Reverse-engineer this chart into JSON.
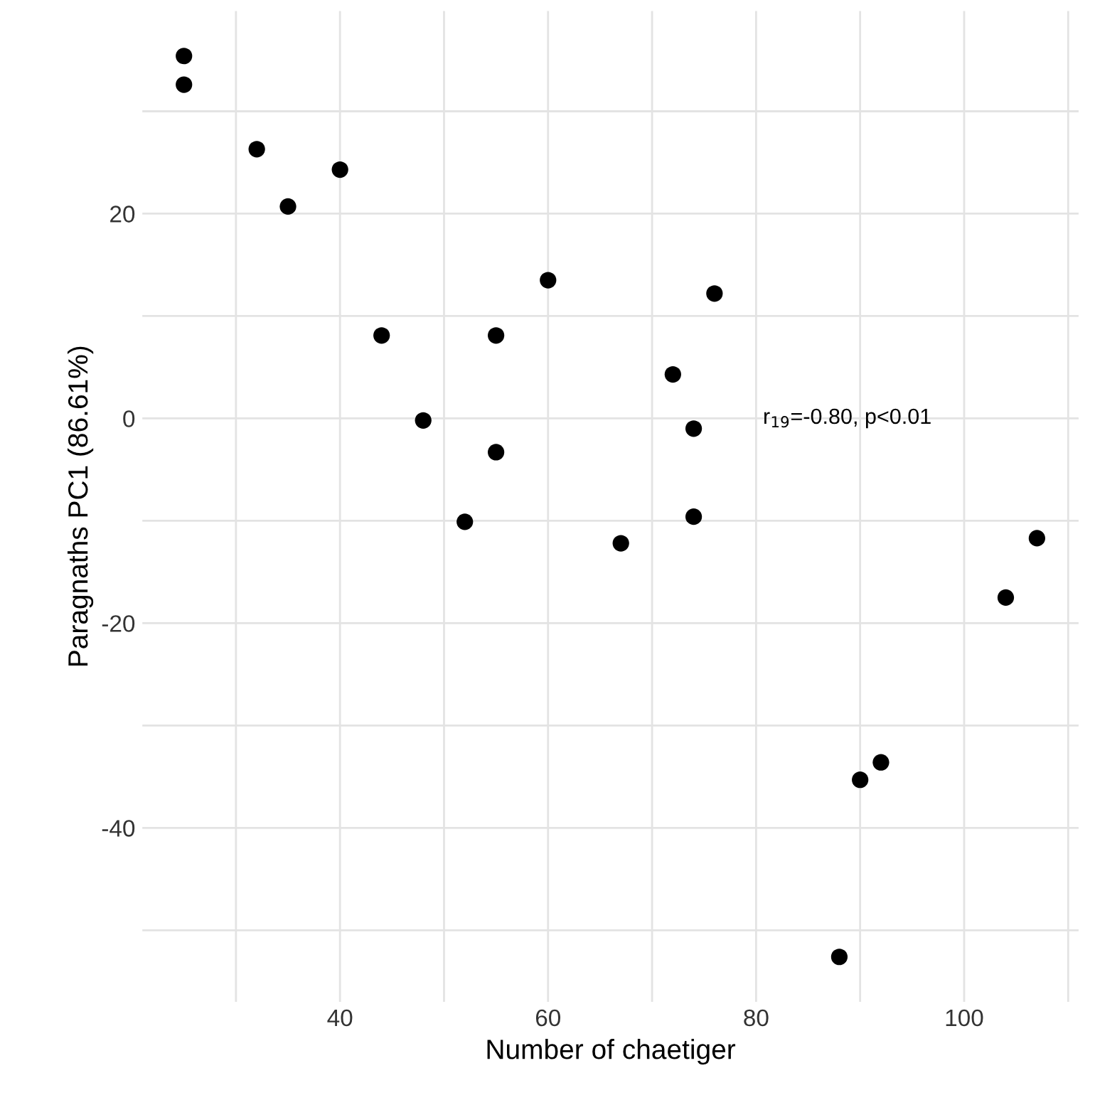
{
  "chart_data": {
    "type": "scatter",
    "xlabel": "Number of chaetiger",
    "ylabel": "Paragnaths PC1 (86.61%)",
    "x": [
      25,
      25,
      32,
      35,
      40,
      44,
      48,
      52,
      55,
      55,
      60,
      67,
      72,
      74,
      74,
      76,
      88,
      90,
      92,
      104,
      107
    ],
    "series": [
      {
        "color": "#000000",
        "values": [
          35.4,
          32.6,
          26.3,
          20.7,
          24.3,
          8.1,
          -0.2,
          -10.1,
          8.1,
          -3.3,
          13.5,
          -12.2,
          4.3,
          -1.0,
          -9.6,
          12.2,
          -52.6,
          -35.3,
          -33.6,
          -17.5,
          -11.7
        ]
      }
    ],
    "xlim": [
      21,
      111
    ],
    "ylim": [
      -57,
      39.8
    ],
    "xticks": [
      {
        "value": 30,
        "label": null
      },
      40,
      {
        "value": 50,
        "label": null
      },
      60,
      {
        "value": 70,
        "label": null
      },
      80,
      {
        "value": 90,
        "label": null
      },
      100,
      {
        "value": 110,
        "label": null
      }
    ],
    "yticks": [
      {
        "value": -50,
        "label": null
      },
      -40,
      {
        "value": -30,
        "label": null
      },
      -20,
      {
        "value": -10,
        "label": null
      },
      0,
      {
        "value": 10,
        "label": null
      },
      20,
      {
        "value": 30,
        "label": null
      }
    ],
    "grid": true,
    "marker": "circle",
    "annotations": [
      "r$_{19}$=-0.80, p<0.01"
    ]
  }
}
